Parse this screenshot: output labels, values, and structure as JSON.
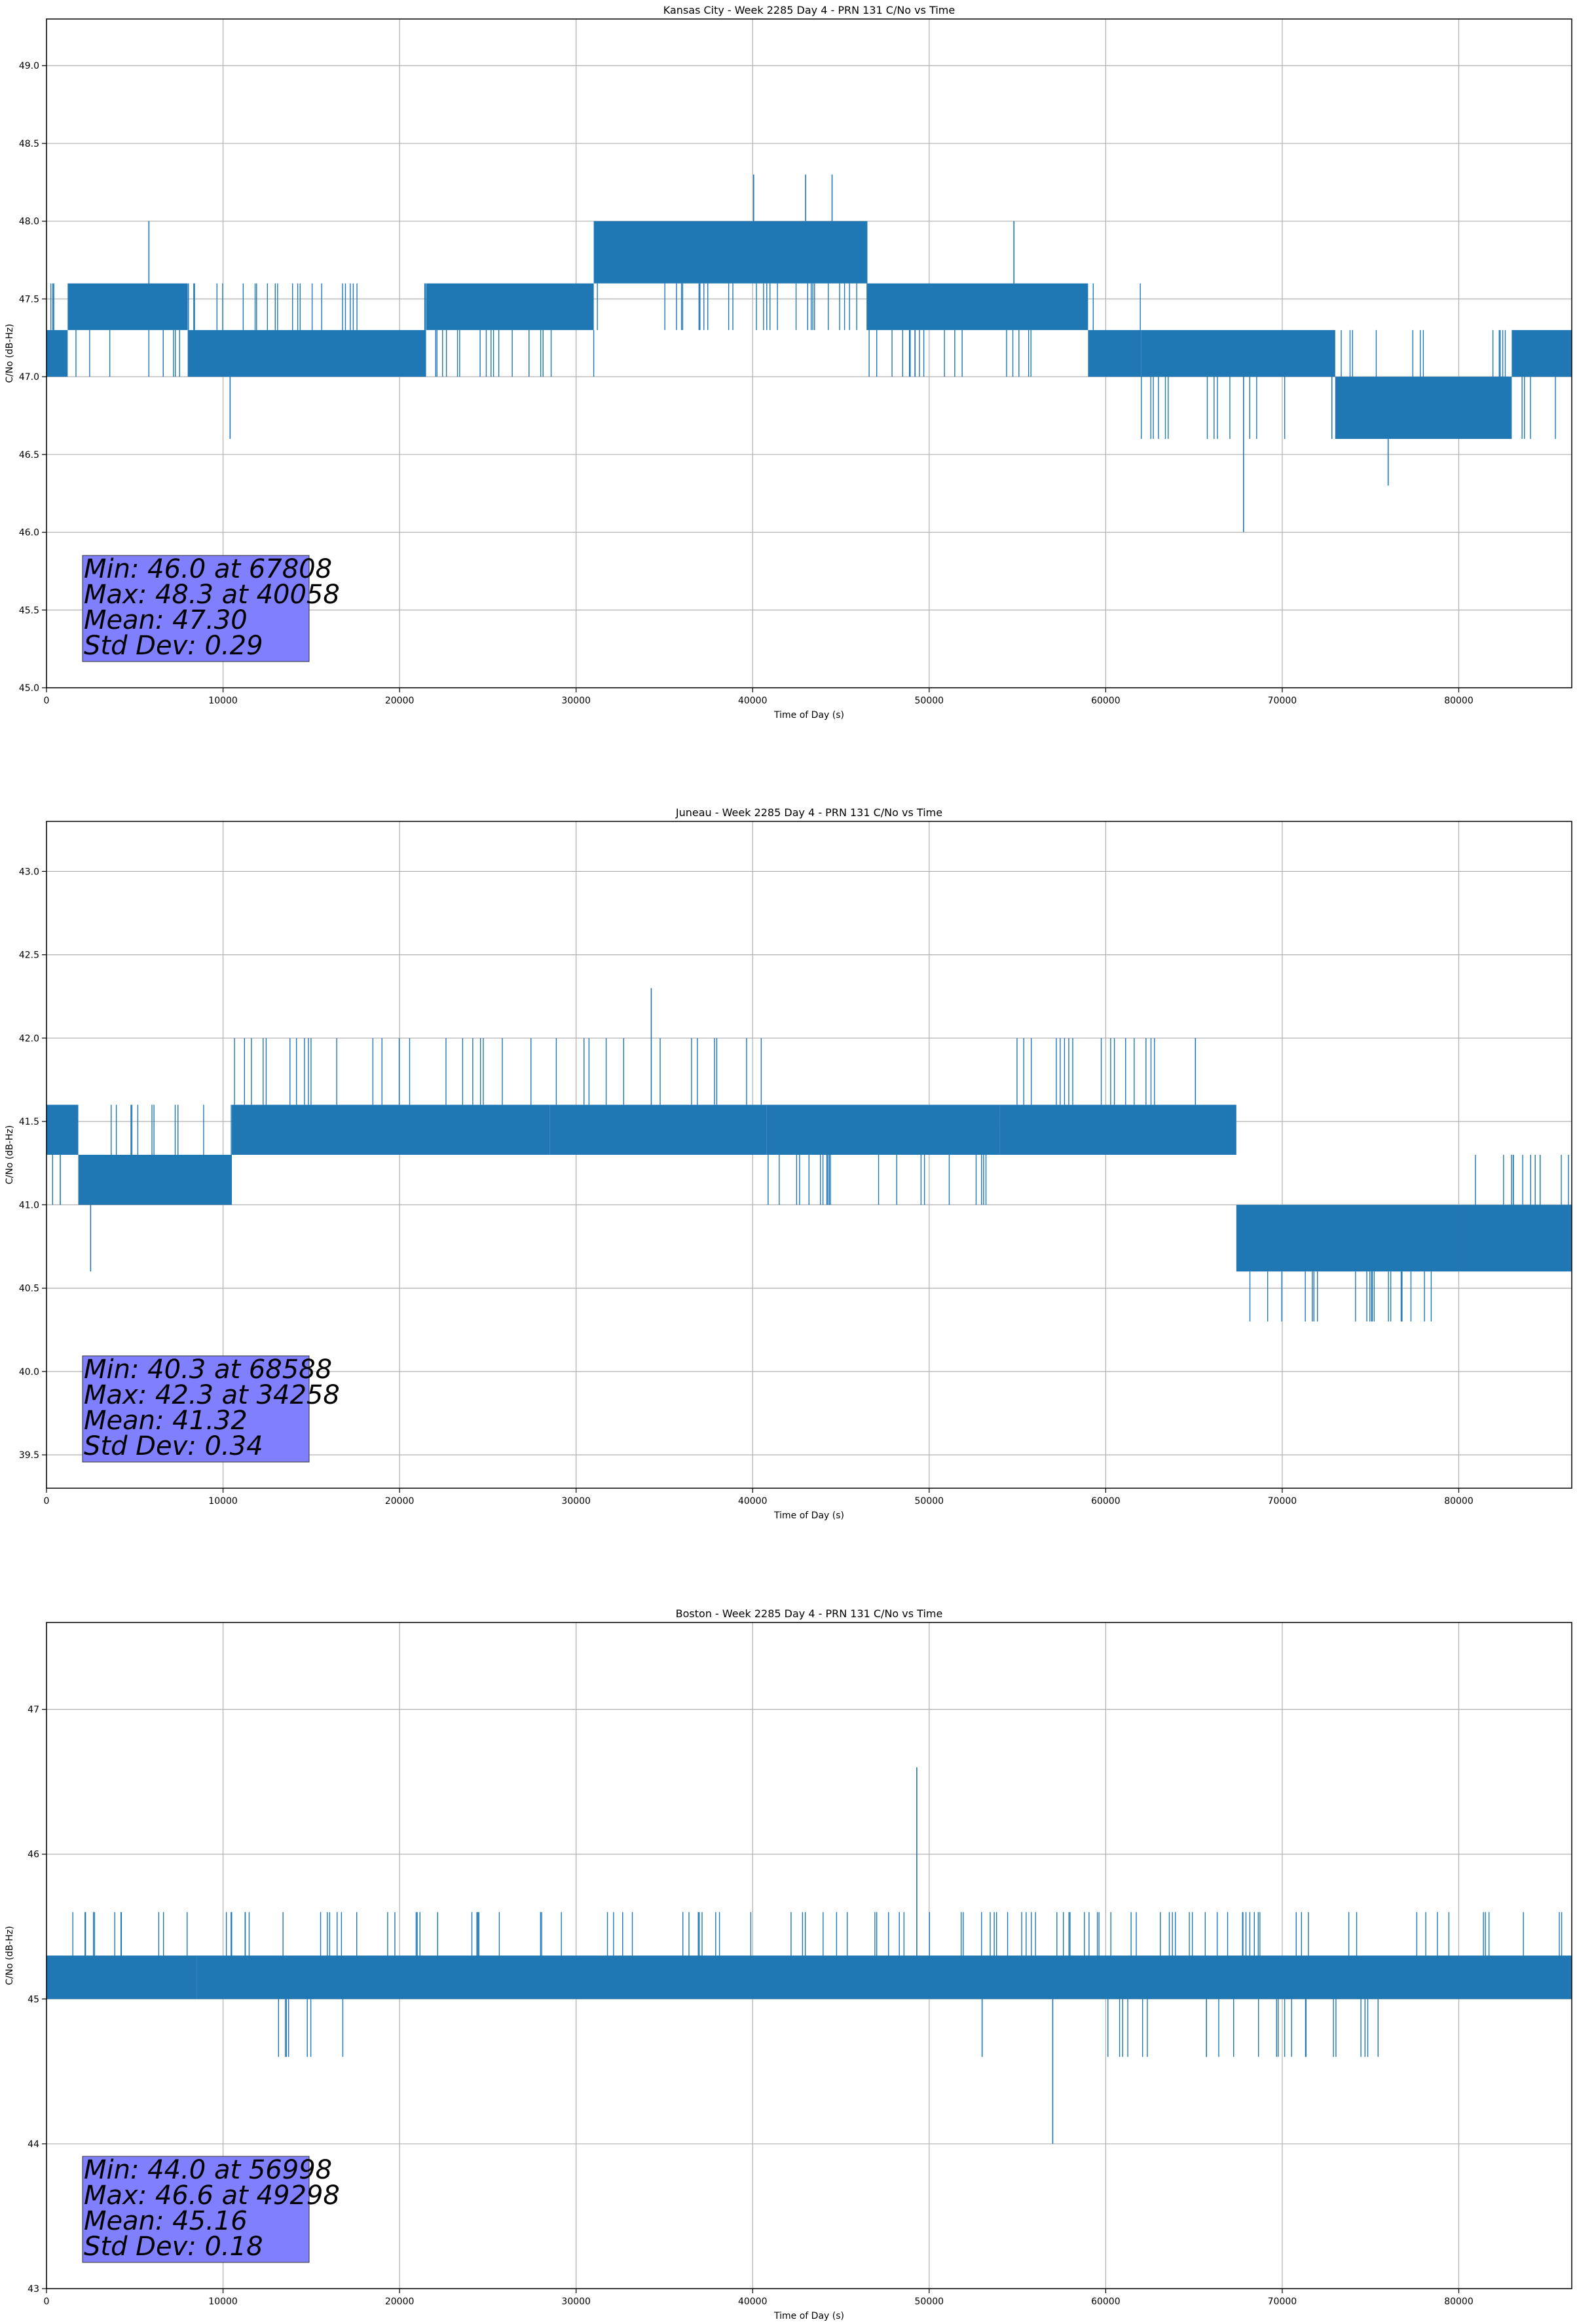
{
  "colors": {
    "series": "#1f77b4",
    "grid": "#b0b0b0",
    "stats_box": "#8080ff"
  },
  "chart_data": [
    {
      "type": "line",
      "title": "Kansas City - Week 2285 Day 4 - PRN 131 C/No vs Time",
      "xlabel": "Time of Day (s)",
      "ylabel": "C/No (dB-Hz)",
      "xlim": [
        0,
        86400
      ],
      "ylim": [
        45.0,
        49.3
      ],
      "xticks": [
        0,
        10000,
        20000,
        30000,
        40000,
        50000,
        60000,
        70000,
        80000
      ],
      "yticks": [
        "45.0",
        "45.5",
        "46.0",
        "46.5",
        "47.0",
        "47.5",
        "48.0",
        "48.5",
        "49.0"
      ],
      "grid": true,
      "series": [
        {
          "color": "#1f77b4",
          "bands": [
            {
              "x": [
                0,
                1200
              ],
              "y": [
                47.0,
                47.3
              ],
              "spikes_to": 47.6
            },
            {
              "x": [
                1200,
                8000
              ],
              "y": [
                47.3,
                47.6
              ],
              "spikes_to": 47.0
            },
            {
              "x": [
                8000,
                21500
              ],
              "y": [
                47.0,
                47.3
              ],
              "spikes_to": 47.6
            },
            {
              "x": [
                21500,
                31000
              ],
              "y": [
                47.3,
                47.6
              ],
              "spikes_to": 47.0
            },
            {
              "x": [
                31000,
                46500
              ],
              "y": [
                47.6,
                48.0
              ],
              "spikes_to": 47.3
            },
            {
              "x": [
                46500,
                59000
              ],
              "y": [
                47.3,
                47.6
              ],
              "spikes_to": 47.0
            },
            {
              "x": [
                59000,
                62000
              ],
              "y": [
                47.0,
                47.3
              ],
              "spikes_to": 47.6
            },
            {
              "x": [
                62000,
                73000
              ],
              "y": [
                47.0,
                47.3
              ],
              "spikes_to": 46.6
            },
            {
              "x": [
                73000,
                83000
              ],
              "y": [
                46.6,
                47.0
              ],
              "spikes_to": 47.3
            },
            {
              "x": [
                83000,
                86400
              ],
              "y": [
                47.0,
                47.3
              ],
              "spikes_to": 46.6
            }
          ],
          "spikes": [
            {
              "x": 5800,
              "y": 48.0
            },
            {
              "x": 10400,
              "y": 46.6
            },
            {
              "x": 40058,
              "y": 48.3
            },
            {
              "x": 43000,
              "y": 48.3
            },
            {
              "x": 44500,
              "y": 48.3
            },
            {
              "x": 54800,
              "y": 48.0
            },
            {
              "x": 67808,
              "y": 46.0
            },
            {
              "x": 76000,
              "y": 46.3
            }
          ]
        }
      ],
      "stats": [
        "Min: 46.0 at 67808",
        "Max: 48.3 at 40058",
        "Mean: 47.30",
        "Std Dev: 0.29"
      ]
    },
    {
      "type": "line",
      "title": "Juneau - Week 2285 Day 4 - PRN 131 C/No vs Time",
      "xlabel": "Time of Day (s)",
      "ylabel": "C/No (dB-Hz)",
      "xlim": [
        0,
        86400
      ],
      "ylim": [
        39.3,
        43.3
      ],
      "xticks": [
        0,
        10000,
        20000,
        30000,
        40000,
        50000,
        60000,
        70000,
        80000
      ],
      "yticks": [
        "39.5",
        "40.0",
        "40.5",
        "41.0",
        "41.5",
        "42.0",
        "42.5",
        "43.0"
      ],
      "grid": true,
      "series": [
        {
          "color": "#1f77b4",
          "bands": [
            {
              "x": [
                0,
                1800
              ],
              "y": [
                41.3,
                41.6
              ],
              "spikes_to": 41.0
            },
            {
              "x": [
                1800,
                10500
              ],
              "y": [
                41.0,
                41.3
              ],
              "spikes_to": 41.6
            },
            {
              "x": [
                10500,
                28500
              ],
              "y": [
                41.3,
                41.6
              ],
              "spikes_to": 42.0
            },
            {
              "x": [
                28500,
                40800
              ],
              "y": [
                41.3,
                41.6
              ],
              "spikes_to": 42.0
            },
            {
              "x": [
                40800,
                54000
              ],
              "y": [
                41.3,
                41.6
              ],
              "spikes_to": 41.0
            },
            {
              "x": [
                54000,
                67400
              ],
              "y": [
                41.3,
                41.6
              ],
              "spikes_to": 42.0
            },
            {
              "x": [
                67400,
                80000
              ],
              "y": [
                40.6,
                41.0
              ],
              "spikes_to": 40.3
            },
            {
              "x": [
                80000,
                86400
              ],
              "y": [
                40.6,
                41.0
              ],
              "spikes_to": 41.3
            }
          ],
          "spikes": [
            {
              "x": 2500,
              "y": 40.6
            },
            {
              "x": 34258,
              "y": 42.3
            }
          ]
        }
      ],
      "stats": [
        "Min: 40.3 at 68588",
        "Max: 42.3 at 34258",
        "Mean: 41.32",
        "Std Dev: 0.34"
      ]
    },
    {
      "type": "line",
      "title": "Boston - Week 2285 Day 4 - PRN 131 C/No vs Time",
      "xlabel": "Time of Day (s)",
      "ylabel": "C/No (dB-Hz)",
      "xlim": [
        0,
        86400
      ],
      "ylim": [
        43.0,
        47.6
      ],
      "xticks": [
        0,
        10000,
        20000,
        30000,
        40000,
        50000,
        60000,
        70000,
        80000
      ],
      "yticks": [
        "43",
        "44",
        "45",
        "46",
        "47"
      ],
      "grid": true,
      "series": [
        {
          "color": "#1f77b4",
          "bands": [
            {
              "x": [
                0,
                8500
              ],
              "y": [
                45.0,
                45.3
              ],
              "spikes_to": 45.6
            },
            {
              "x": [
                8500,
                86400
              ],
              "y": [
                45.0,
                45.3
              ],
              "spikes_to": 45.6
            },
            {
              "x": [
                13000,
                18500
              ],
              "y": [
                45.0,
                45.0
              ],
              "spikes_to": 44.6
            },
            {
              "x": [
                60000,
                76000
              ],
              "y": [
                45.0,
                45.0
              ],
              "spikes_to": 44.6
            }
          ],
          "spikes": [
            {
              "x": 49298,
              "y": 46.6
            },
            {
              "x": 56998,
              "y": 44.0
            },
            {
              "x": 53000,
              "y": 44.6
            }
          ]
        }
      ],
      "stats": [
        "Min: 44.0 at 56998",
        "Max: 46.6 at 49298",
        "Mean: 45.16",
        "Std Dev: 0.18"
      ]
    }
  ]
}
